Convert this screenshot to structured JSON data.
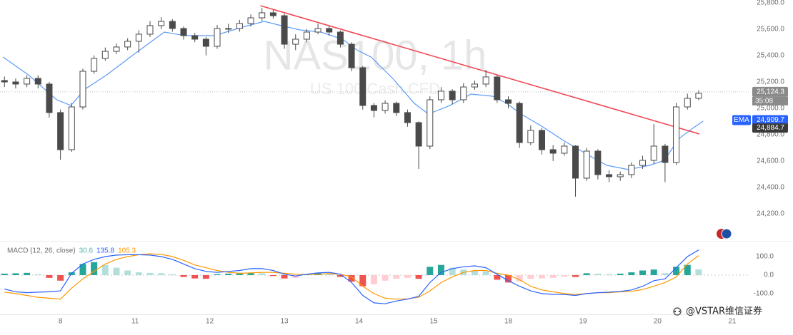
{
  "chart_data": [
    {
      "type": "candlestick",
      "watermark": {
        "title": "NAS100, 1h",
        "subtitle": "US 100 Cash CFD"
      },
      "xlim": [
        -0.81,
        9.24
      ],
      "xticks": [
        {
          "value": 0,
          "label": "8"
        },
        {
          "value": 1,
          "label": "11"
        },
        {
          "value": 2,
          "label": "12"
        },
        {
          "value": 3,
          "label": "13"
        },
        {
          "value": 4,
          "label": "14"
        },
        {
          "value": 5,
          "label": "15"
        },
        {
          "value": 6,
          "label": "18"
        },
        {
          "value": 7,
          "label": "19"
        },
        {
          "value": 8,
          "label": "20"
        },
        {
          "value": 9,
          "label": "21"
        }
      ],
      "ylim": [
        24000,
        25820
      ],
      "yticks": [
        {
          "value": 24200,
          "label": "24,200.0"
        },
        {
          "value": 24400,
          "label": "24,400.0"
        },
        {
          "value": 24600,
          "label": "24,600.0"
        },
        {
          "value": 24800,
          "label": "24,800.0"
        },
        {
          "value": 25000,
          "label": "25,000.0"
        },
        {
          "value": 25200,
          "label": "25,200.0"
        },
        {
          "value": 25400,
          "label": "25,400.0"
        },
        {
          "value": 25600,
          "label": "25,600.0"
        },
        {
          "value": 25800,
          "label": "25,800.0"
        }
      ],
      "grid": false,
      "up_color": "#ffffff",
      "down_color": "#4a4a4a",
      "wick_color": "#4a4a4a",
      "x": [
        -0.75,
        -0.6,
        -0.45,
        -0.3,
        -0.15,
        0,
        0.15,
        0.3,
        0.45,
        0.6,
        0.75,
        0.9,
        1.05,
        1.2,
        1.35,
        1.5,
        1.65,
        1.8,
        1.95,
        2.1,
        2.25,
        2.4,
        2.55,
        2.7,
        2.85,
        3,
        3.15,
        3.3,
        3.45,
        3.6,
        3.75,
        3.9,
        4.05,
        4.2,
        4.35,
        4.5,
        4.65,
        4.8,
        4.95,
        5.1,
        5.25,
        5.4,
        5.55,
        5.7,
        5.85,
        6,
        6.15,
        6.3,
        6.45,
        6.6,
        6.75,
        6.9,
        7.05,
        7.2,
        7.35,
        7.5,
        7.65,
        7.8,
        7.95,
        8.1,
        8.25,
        8.4,
        8.55
      ],
      "open": [
        25210,
        25199,
        25183,
        25226,
        25183,
        24967,
        24686,
        25010,
        25280,
        25377,
        25431,
        25464,
        25507,
        25561,
        25626,
        25658,
        25604,
        25550,
        25523,
        25469,
        25604,
        25604,
        25642,
        25685,
        25723,
        25701,
        25485,
        25523,
        25577,
        25604,
        25577,
        25485,
        25307,
        25021,
        24983,
        25037,
        24967,
        24891,
        24713,
        25064,
        25129,
        25064,
        25161,
        25183,
        25237,
        25064,
        25037,
        24740,
        24832,
        24686,
        24659,
        24713,
        24470,
        24675,
        24497,
        24481,
        24497,
        24567,
        24605,
        24713,
        24589,
        25010,
        25075
      ],
      "high": [
        25240,
        25225,
        25250,
        25250,
        25200,
        24990,
        25040,
        25300,
        25400,
        25460,
        25490,
        25530,
        25590,
        25660,
        25690,
        25675,
        25620,
        25570,
        25540,
        25630,
        25640,
        25670,
        25710,
        25760,
        25745,
        25715,
        25560,
        25600,
        25640,
        25625,
        25590,
        25500,
        25320,
        25040,
        25060,
        25050,
        24990,
        24900,
        25090,
        25160,
        25145,
        25190,
        25210,
        25290,
        25250,
        25090,
        25050,
        24870,
        24850,
        24720,
        24740,
        24720,
        24700,
        24690,
        24530,
        24520,
        24590,
        24640,
        24880,
        24730,
        25040,
        25110,
        25135
      ],
      "low": [
        25160,
        25150,
        25160,
        25150,
        24930,
        24610,
        24670,
        24990,
        25260,
        25360,
        25410,
        25440,
        25420,
        25540,
        25600,
        25580,
        25520,
        25500,
        25400,
        25450,
        25570,
        25580,
        25620,
        25660,
        25680,
        25450,
        25440,
        25500,
        25560,
        25550,
        25460,
        25280,
        24990,
        24930,
        24960,
        24940,
        24860,
        24540,
        24690,
        25040,
        25030,
        25040,
        25140,
        25160,
        25040,
        25000,
        24700,
        24720,
        24650,
        24600,
        24640,
        24330,
        24450,
        24460,
        24440,
        24450,
        24470,
        24540,
        24580,
        24440,
        24570,
        24990,
        25060
      ],
      "close": [
        25199,
        25183,
        25226,
        25183,
        24967,
        24686,
        25010,
        25280,
        25377,
        25431,
        25464,
        25507,
        25561,
        25626,
        25658,
        25604,
        25550,
        25523,
        25469,
        25604,
        25604,
        25642,
        25685,
        25723,
        25701,
        25485,
        25523,
        25577,
        25604,
        25577,
        25485,
        25307,
        25021,
        24983,
        25037,
        24967,
        24891,
        24713,
        25064,
        25129,
        25064,
        25161,
        25183,
        25237,
        25064,
        25037,
        24740,
        24832,
        24686,
        24659,
        24713,
        24470,
        24675,
        24497,
        24481,
        24497,
        24567,
        24605,
        24713,
        24589,
        25010,
        25075,
        25113
      ],
      "series": [
        {
          "name": "EMA",
          "color": "#5b9cf6",
          "x": [
            -0.77,
            -0.43,
            -0.05,
            0.14,
            0.33,
            0.62,
            1.0,
            1.39,
            1.67,
            2.06,
            2.44,
            2.73,
            2.92,
            3.21,
            3.49,
            3.78,
            3.97,
            4.16,
            4.45,
            4.74,
            4.93,
            5.22,
            5.5,
            5.79,
            5.98,
            6.17,
            6.46,
            6.75,
            7.03,
            7.32,
            7.61,
            7.89,
            8.09,
            8.28,
            8.47,
            8.61
          ],
          "values": [
            25388,
            25253,
            25064,
            25021,
            25145,
            25253,
            25415,
            25577,
            25550,
            25550,
            25615,
            25658,
            25631,
            25593,
            25577,
            25523,
            25442,
            25388,
            25226,
            25037,
            24956,
            25021,
            25107,
            25091,
            25037,
            24956,
            24859,
            24751,
            24659,
            24567,
            24535,
            24567,
            24605,
            24767,
            24848,
            24902
          ]
        }
      ],
      "trendline": {
        "color": "#f04a55",
        "x": [
          2.68,
          8.56
        ],
        "values": [
          25777,
          24805
        ]
      },
      "last_price": {
        "value": 25124.3,
        "label": "25,124.3"
      },
      "countdown": "35:08",
      "ema_label": {
        "value": 24909.7,
        "label": "24,909.7"
      },
      "level_label": {
        "value": 24884.7,
        "label": "24,884.7"
      }
    },
    {
      "type": "macd",
      "title": "MACD (12, 26, close)",
      "ylim": [
        -208,
        177
      ],
      "yticks": [
        {
          "value": -100,
          "label": "-100.0"
        },
        {
          "value": 0,
          "label": "0.0"
        },
        {
          "value": 100,
          "label": "100.0"
        }
      ],
      "zero_line": true,
      "histogram": {
        "colors": {
          "pos_up": "#26a69a",
          "pos_down": "#b2dfdb",
          "neg_down": "#ef5350",
          "neg_up": "#ffcdd2"
        },
        "values": [
          8,
          10,
          12,
          5,
          -15,
          -30,
          15,
          60,
          70,
          55,
          40,
          25,
          15,
          12,
          10,
          5,
          -10,
          -18,
          -20,
          5,
          8,
          10,
          12,
          10,
          -5,
          -18,
          -15,
          5,
          12,
          8,
          -10,
          -35,
          -60,
          -50,
          -30,
          -20,
          -15,
          -20,
          45,
          55,
          40,
          30,
          25,
          20,
          -25,
          -40,
          -35,
          -20,
          -18,
          -15,
          -8,
          -10,
          10,
          8,
          5,
          8,
          15,
          25,
          30,
          10,
          45,
          55,
          30.6
        ]
      },
      "macd": {
        "color": "#2962ff",
        "values": [
          -75,
          -90,
          -95,
          -92,
          -90,
          -85,
          10,
          60,
          85,
          100,
          108,
          110,
          110,
          108,
          100,
          85,
          60,
          35,
          20,
          15,
          20,
          25,
          35,
          35,
          25,
          5,
          -5,
          5,
          12,
          15,
          5,
          -40,
          -110,
          -150,
          -155,
          -140,
          -130,
          -115,
          -40,
          15,
          35,
          45,
          50,
          40,
          5,
          -30,
          -60,
          -85,
          -100,
          -104,
          -105,
          -110,
          -100,
          -95,
          -92,
          -88,
          -80,
          -60,
          -30,
          -20,
          40,
          100,
          135.8
        ]
      },
      "signal": {
        "color": "#ff9800",
        "values": [
          -92,
          -100,
          -110,
          -120,
          -125,
          -130,
          -70,
          -20,
          20,
          60,
          85,
          100,
          110,
          115,
          112,
          100,
          80,
          55,
          40,
          25,
          15,
          10,
          12,
          15,
          15,
          10,
          5,
          3,
          5,
          8,
          5,
          -10,
          -60,
          -100,
          -125,
          -130,
          -128,
          -120,
          -85,
          -40,
          -10,
          15,
          25,
          25,
          10,
          0,
          -25,
          -60,
          -80,
          -90,
          -100,
          -105,
          -100,
          -95,
          -95,
          -90,
          -88,
          -78,
          -60,
          -40,
          -10,
          60,
          105.3
        ]
      }
    }
  ],
  "footer": "@VSTAR维信证券"
}
